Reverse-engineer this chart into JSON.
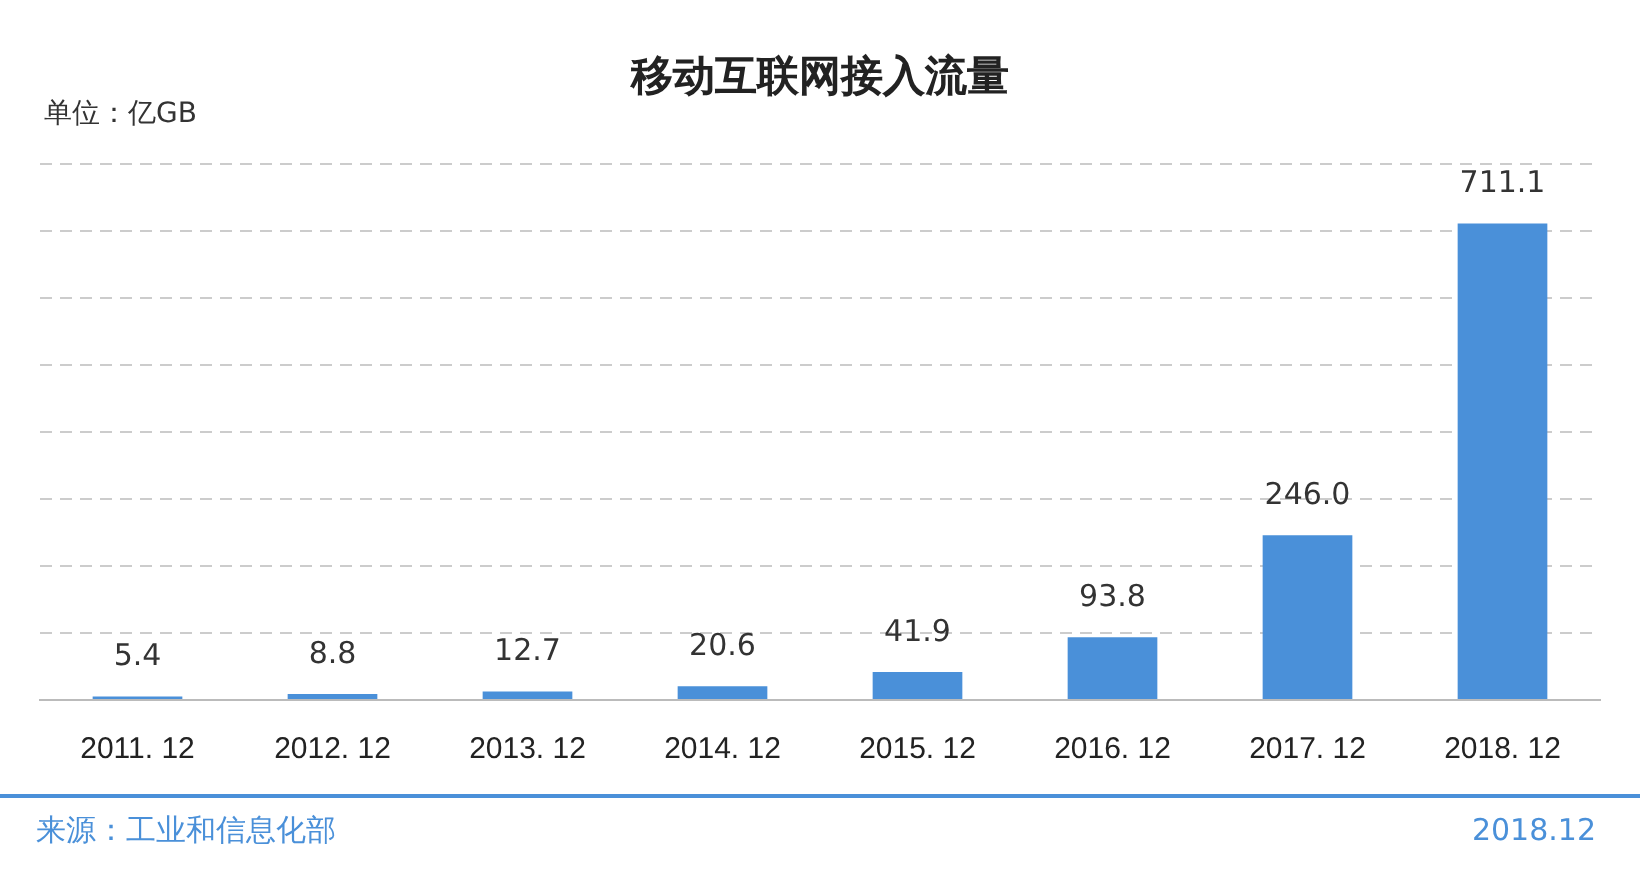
{
  "chart_data": {
    "type": "bar",
    "title": "移动互联网接入流量",
    "ylabel": "单位：亿GB",
    "categories": [
      "2011. 12",
      "2012. 12",
      "2013. 12",
      "2014. 12",
      "2015. 12",
      "2016. 12",
      "2017. 12",
      "2018. 12"
    ],
    "values": [
      5.4,
      8.8,
      12.7,
      20.6,
      41.9,
      93.8,
      246.0,
      711.1
    ],
    "value_labels": [
      "5.4",
      "8.8",
      "12.7",
      "20.6",
      "41.9",
      "93.8",
      "246.0",
      "711.1"
    ],
    "color": "#4a90d9",
    "grid": "y",
    "tick_labels": "x",
    "legend": false,
    "annotations": [
      "来源：工业和信息化部",
      "2018.12"
    ]
  }
}
